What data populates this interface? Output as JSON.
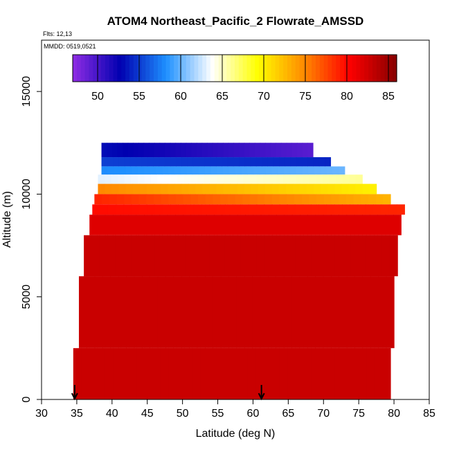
{
  "chart_data": {
    "type": "heatmap",
    "title": "ATOM4 Northeast_Pacific_2 Flowrate_AMSSD",
    "flights_label": "Flts: 12,13",
    "dates_label": "MMDD: 0519,0521",
    "xlabel": "Latitude (deg N)",
    "ylabel": "Altitude (m)",
    "xlim": [
      30,
      85
    ],
    "ylim": [
      0,
      17500
    ],
    "x_ticks": [
      "30",
      "35",
      "40",
      "45",
      "50",
      "55",
      "60",
      "65",
      "70",
      "75",
      "80",
      "85"
    ],
    "y_ticks": [
      "0",
      "5000",
      "10000",
      "15000"
    ],
    "colorbar": {
      "range": [
        47,
        86
      ],
      "ticks": [
        "50",
        "55",
        "60",
        "65",
        "70",
        "75",
        "80",
        "85"
      ],
      "colors": [
        "#8a2be2",
        "#0000b0",
        "#1e90ff",
        "#ffffff",
        "#ffff00",
        "#ff8c00",
        "#ff0000",
        "#8b0000"
      ]
    },
    "arrows_at_latitude": [
      34.7,
      61.2
    ],
    "layers": [
      {
        "alt_min": 11800,
        "alt_max": 12500,
        "lat_min": 38.5,
        "lat_max": 68.5,
        "value_start": 53,
        "value_end": 49
      },
      {
        "alt_min": 11350,
        "alt_max": 11800,
        "lat_min": 38.5,
        "lat_max": 71,
        "value_start": 55,
        "value_end": 54
      },
      {
        "alt_min": 10950,
        "alt_max": 11350,
        "lat_min": 38.5,
        "lat_max": 73,
        "value_start": 58,
        "value_end": 60
      },
      {
        "alt_min": 10500,
        "alt_max": 10950,
        "lat_min": 38,
        "lat_max": 75.5,
        "value_start": 63,
        "value_end": 66
      },
      {
        "alt_min": 10000,
        "alt_max": 10500,
        "lat_min": 38,
        "lat_max": 77.5,
        "value_start": 75,
        "value_end": 70
      },
      {
        "alt_min": 9500,
        "alt_max": 10000,
        "lat_min": 37.5,
        "lat_max": 79.5,
        "value_start": 79,
        "value_end": 73
      },
      {
        "alt_min": 9000,
        "alt_max": 9500,
        "lat_min": 37.2,
        "lat_max": 81.5,
        "value_start": 80,
        "value_end": 79
      },
      {
        "alt_min": 8000,
        "alt_max": 9000,
        "lat_min": 36.8,
        "lat_max": 81,
        "value_start": 82,
        "value_end": 82
      },
      {
        "alt_min": 6000,
        "alt_max": 8000,
        "lat_min": 36,
        "lat_max": 80.5,
        "value_start": 83,
        "value_end": 83
      },
      {
        "alt_min": 2500,
        "alt_max": 6000,
        "lat_min": 35.3,
        "lat_max": 80,
        "value_start": 83,
        "value_end": 83
      },
      {
        "alt_min": 0,
        "alt_max": 2500,
        "lat_min": 34.5,
        "lat_max": 79.5,
        "value_start": 83,
        "value_end": 83
      }
    ]
  }
}
